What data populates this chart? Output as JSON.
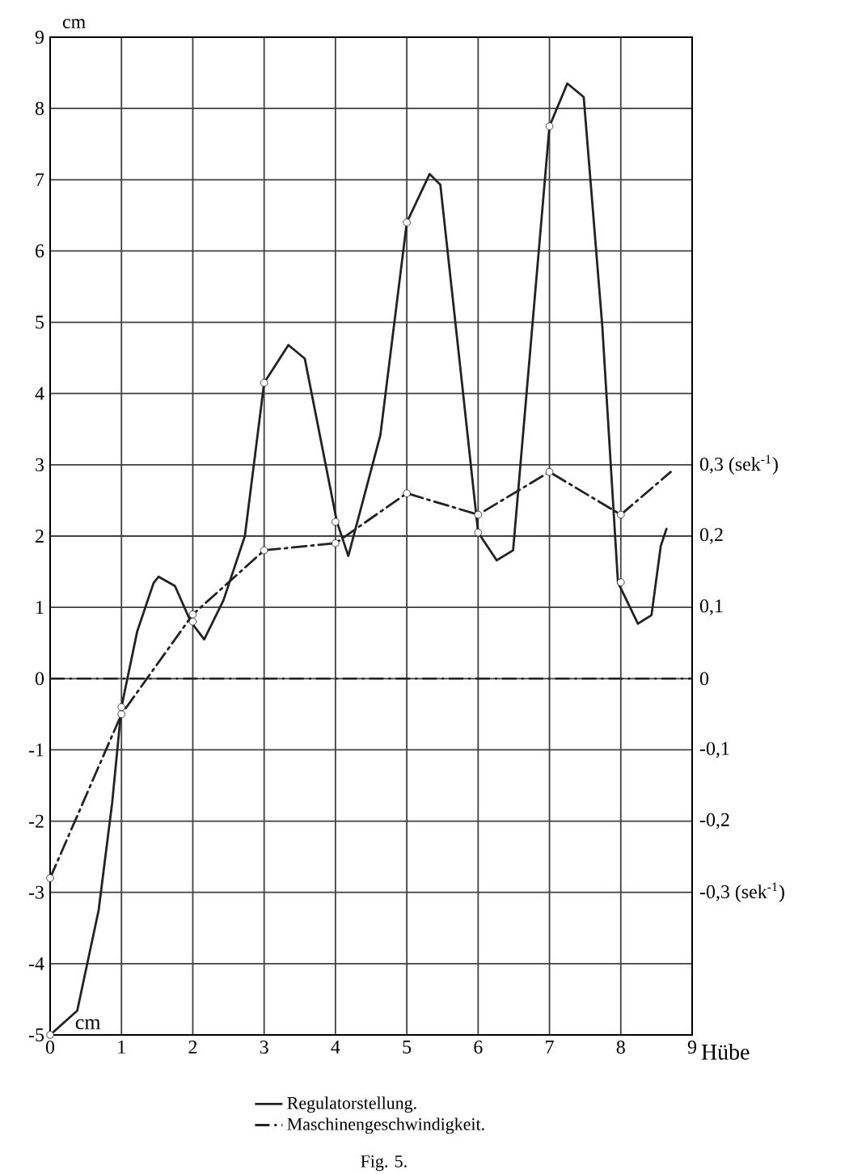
{
  "chart_data": {
    "type": "line",
    "xlabel": "Hübe",
    "ylabel": "cm",
    "xlim": [
      0,
      9
    ],
    "xticks": [
      0,
      1,
      2,
      3,
      4,
      5,
      6,
      7,
      8,
      9
    ],
    "ylim": [
      -5,
      9
    ],
    "yticks": [
      -5,
      -4,
      -3,
      -2,
      -1,
      0,
      1,
      2,
      3,
      4,
      5,
      6,
      7,
      8,
      9
    ],
    "y2lim": [
      -0.5,
      0.9
    ],
    "y2ticks": [
      {
        "value": 0.3,
        "label": "0,3 (sek$^{-1}$)"
      },
      {
        "value": 0.2,
        "label": "0,2"
      },
      {
        "value": 0.1,
        "label": "0,1"
      },
      {
        "value": 0,
        "label": "0"
      },
      {
        "value": -0.1,
        "label": "-0,1"
      },
      {
        "value": -0.2,
        "label": "-0,2"
      },
      {
        "value": -0.3,
        "label": "-0,3 (sek$^{-1}$)"
      }
    ],
    "grid": true,
    "legend": "bottom",
    "ref_lines": [
      {
        "axis": "y",
        "value": 0,
        "line_style": "dashed",
        "color": "#222222"
      }
    ],
    "annotations": [
      "cm",
      "Fig. 5."
    ],
    "series": [
      {
        "name": "Regulatorstellung.",
        "color": "#222222",
        "line_style": "solid",
        "marker": "none",
        "x": [
          0,
          0.38,
          0.68,
          0.87,
          1,
          1.22,
          1.45,
          1.52,
          1.75,
          1.97,
          2.16,
          2.43,
          2.73,
          3,
          3.34,
          3.57,
          4.02,
          4.18,
          4.63,
          5,
          5.32,
          5.47,
          5.77,
          6,
          6.26,
          6.49,
          6.76,
          7,
          7.25,
          7.48,
          7.74,
          7.96,
          8.24,
          8.43,
          8.56,
          8.64
        ],
        "values": [
          -5,
          -4.66,
          -3.25,
          -1.74,
          -0.4,
          0.66,
          1.34,
          1.43,
          1.3,
          0.8,
          0.55,
          1.1,
          2.0,
          4.15,
          4.68,
          4.49,
          2.2,
          1.72,
          3.42,
          6.4,
          7.08,
          6.93,
          4.18,
          2.05,
          1.66,
          1.8,
          4.95,
          7.75,
          8.35,
          8.16,
          4.95,
          1.35,
          0.77,
          0.89,
          1.86,
          2.1
        ]
      },
      {
        "name": "Maschinengeschwindigkeit.",
        "color": "#222222",
        "line_style": "dashed",
        "marker": "none",
        "axis": "y2",
        "x": [
          0,
          1,
          2,
          3,
          4,
          5,
          6,
          7,
          8,
          8.7
        ],
        "values": [
          -0.28,
          -0.05,
          0.09,
          0.18,
          0.19,
          0.26,
          0.23,
          0.29,
          0.23,
          0.29
        ]
      },
      {
        "type": "scatter",
        "color": "#222222",
        "marker": "circle",
        "x": [
          0,
          1,
          2,
          3,
          4,
          5,
          6,
          7,
          8
        ],
        "values": [
          -5,
          -0.4,
          0.8,
          4.15,
          2.2,
          6.4,
          2.05,
          7.75,
          1.35
        ]
      },
      {
        "type": "scatter",
        "color": "#222222",
        "marker": "circle",
        "axis": "y2",
        "x": [
          0,
          1,
          2,
          3,
          4,
          5,
          6,
          7,
          8
        ],
        "values": [
          -0.28,
          -0.05,
          0.09,
          0.18,
          0.19,
          0.26,
          0.23,
          0.29,
          0.23
        ]
      }
    ]
  }
}
